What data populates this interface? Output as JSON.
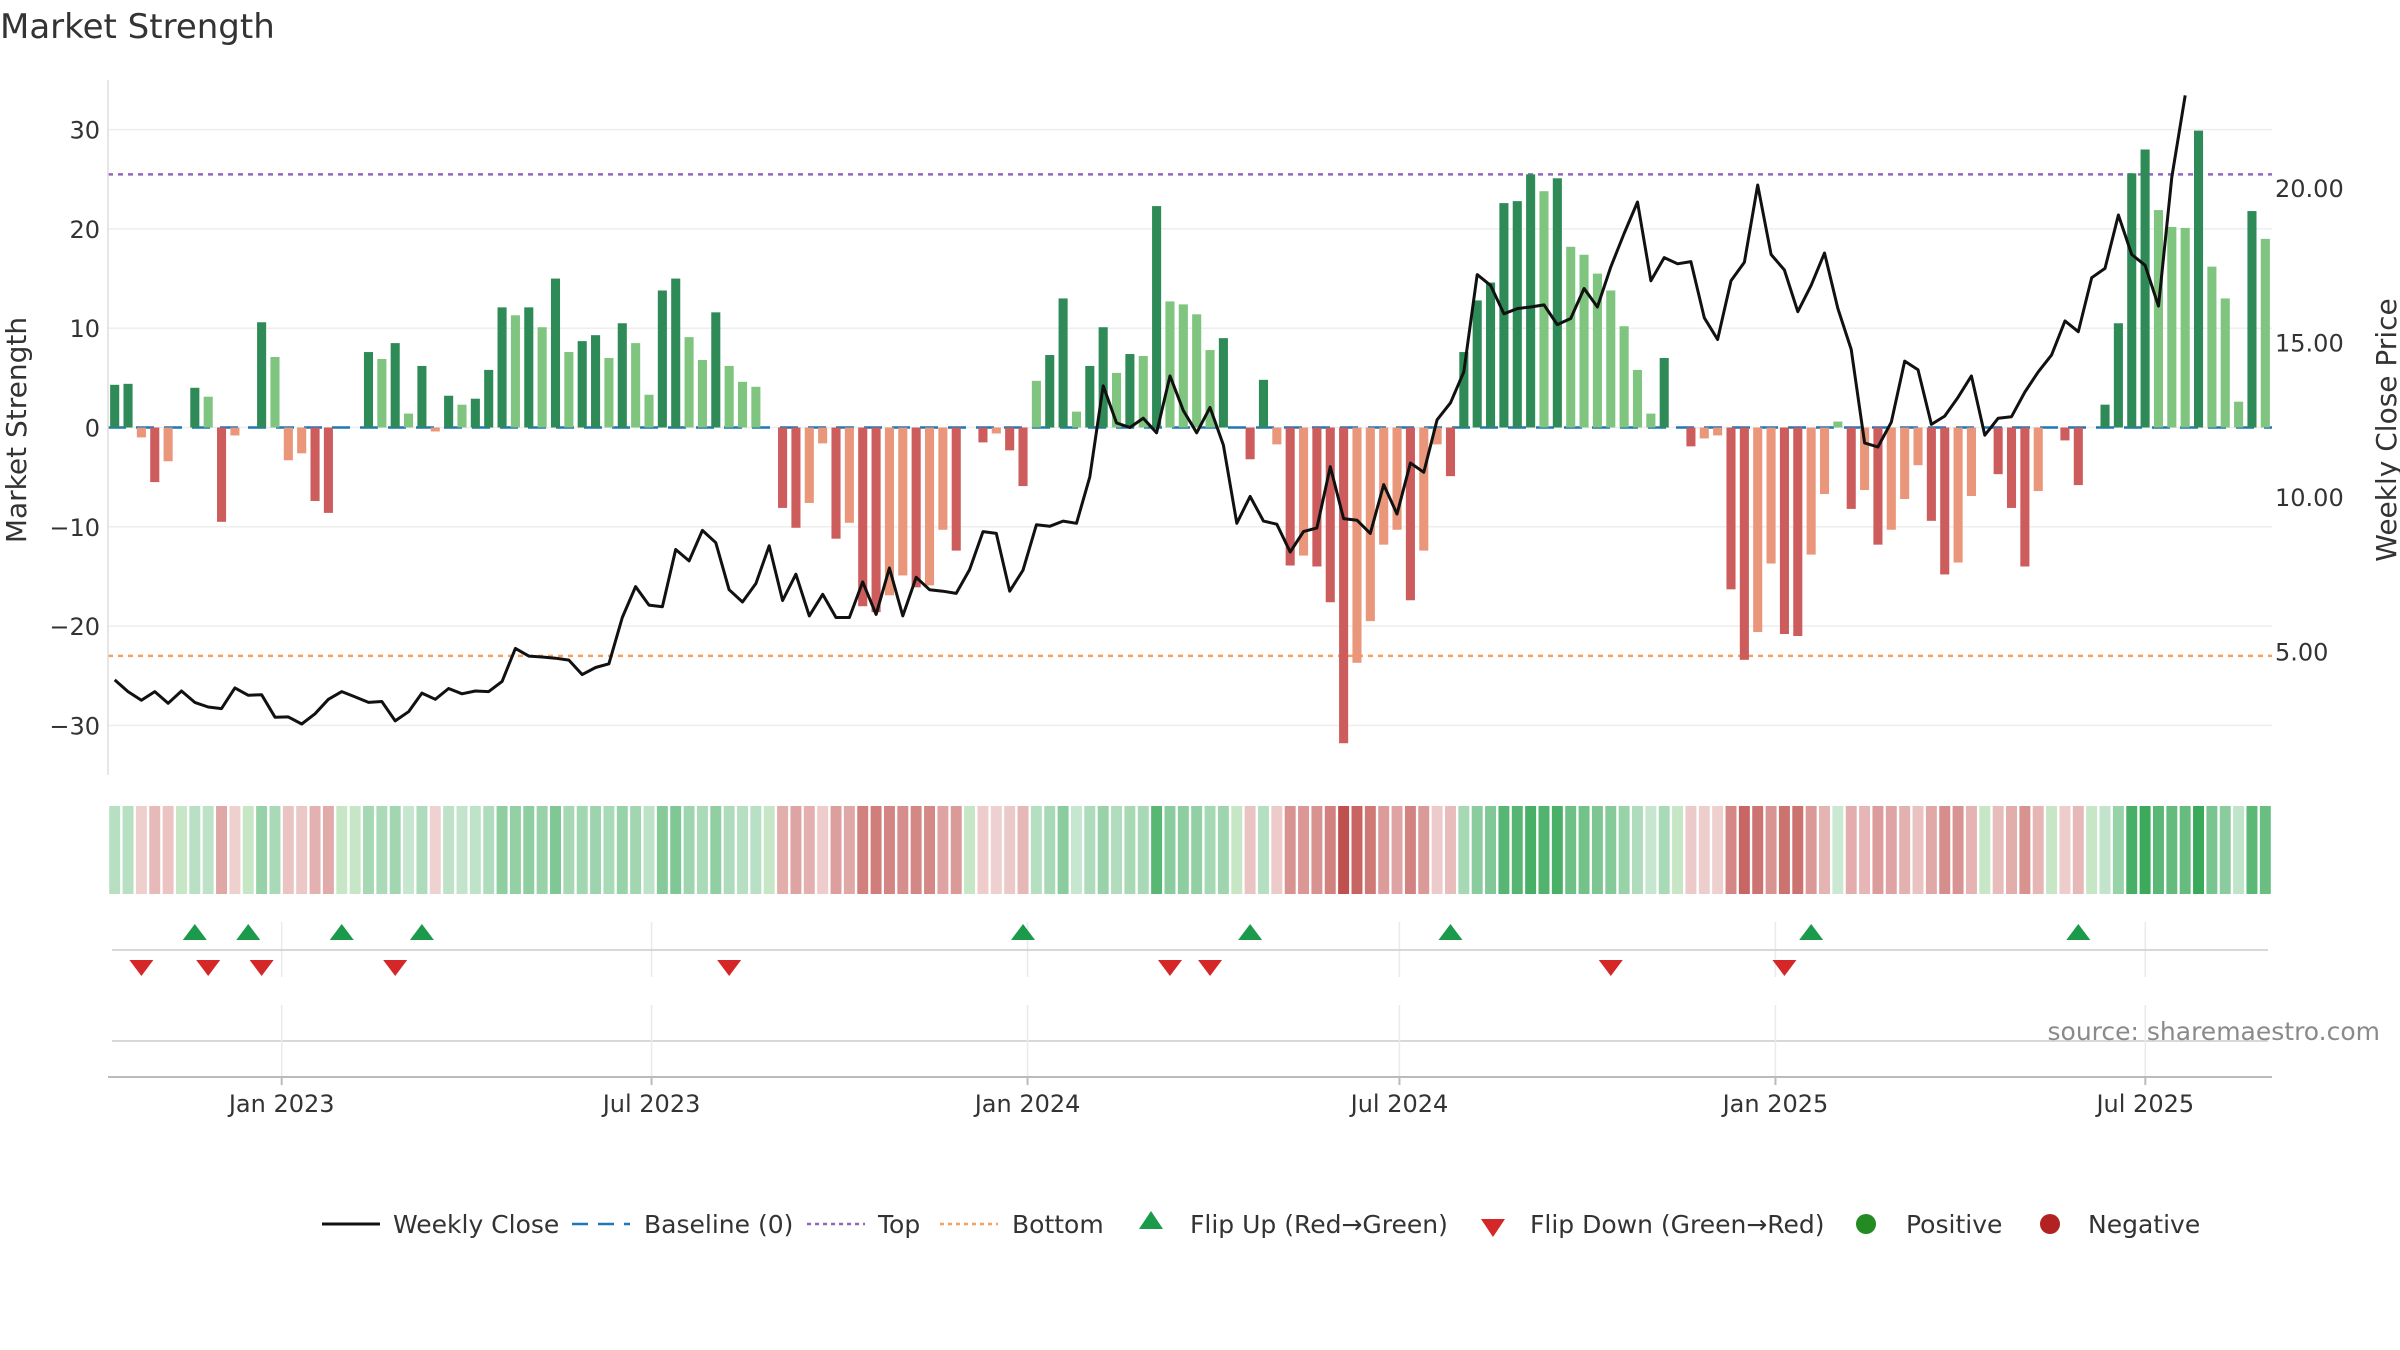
{
  "chart_data": {
    "type": "bar",
    "title": "Market Strength",
    "ylabel": "Market Strength",
    "y2label": "Weekly Close Price",
    "ylim": [
      -35,
      35
    ],
    "y2lim": [
      1.0,
      23.5
    ],
    "yticks": [
      -30,
      -20,
      -10,
      0,
      10,
      20,
      30
    ],
    "ytick_labels": [
      "−30",
      "−20",
      "−10",
      "0",
      "10",
      "20",
      "30"
    ],
    "y2ticks": [
      5,
      10,
      15,
      20
    ],
    "y2tick_labels": [
      "5.00",
      "10.00",
      "15.00",
      "20.00"
    ],
    "x_range": [
      "2022-10-08",
      "2025-09-01"
    ],
    "xticks": [
      {
        "date": "2023-01-01",
        "label": "Jan 2023"
      },
      {
        "date": "2023-07-01",
        "label": "Jul 2023"
      },
      {
        "date": "2024-01-01",
        "label": "Jan 2024"
      },
      {
        "date": "2024-07-01",
        "label": "Jul 2024"
      },
      {
        "date": "2025-01-01",
        "label": "Jan 2025"
      },
      {
        "date": "2025-07-01",
        "label": "Jul 2025"
      }
    ],
    "reference_lines": {
      "top": 25.5,
      "bottom": -23.0,
      "baseline": 0
    },
    "strength": [
      4.3,
      4.4,
      -1.0,
      -5.5,
      -3.4,
      0,
      4.0,
      3.1,
      -9.5,
      -0.8,
      0,
      10.6,
      7.1,
      -3.3,
      -2.6,
      -7.4,
      -8.6,
      0,
      0,
      7.6,
      6.9,
      8.5,
      1.4,
      6.2,
      -0.4,
      3.2,
      2.3,
      2.9,
      5.8,
      12.1,
      11.3,
      12.1,
      10.1,
      15.0,
      7.6,
      8.7,
      9.3,
      7.0,
      10.5,
      8.5,
      3.3,
      13.8,
      15.0,
      9.1,
      6.8,
      11.6,
      6.2,
      4.6,
      4.1,
      0,
      -8.1,
      -10.1,
      -7.6,
      -1.6,
      -11.2,
      -9.6,
      -18.0,
      -18.6,
      -16.9,
      -14.9,
      -16.1,
      -15.9,
      -10.3,
      -12.4,
      0,
      -1.5,
      -0.6,
      -2.3,
      -5.9,
      4.7,
      7.3,
      13.0,
      1.6,
      6.2,
      10.1,
      5.5,
      7.4,
      7.2,
      22.3,
      12.7,
      12.4,
      11.4,
      7.8,
      9.0,
      0,
      -3.2,
      4.8,
      -1.7,
      -13.9,
      -12.9,
      -14.0,
      -17.6,
      -31.8,
      -23.7,
      -19.5,
      -11.8,
      -10.3,
      -17.4,
      -12.4,
      -1.7,
      -4.9,
      7.6,
      12.8,
      14.6,
      22.6,
      22.8,
      25.5,
      23.8,
      25.1,
      18.2,
      17.4,
      15.5,
      13.8,
      10.2,
      5.8,
      1.4,
      7.0,
      0,
      -1.9,
      -1.1,
      -0.8,
      -16.3,
      -23.4,
      -20.6,
      -13.7,
      -20.8,
      -21.0,
      -12.8,
      -6.7,
      0.6,
      -8.2,
      -6.3,
      -11.8,
      -10.3,
      -7.2,
      -3.8,
      -9.4,
      -14.8,
      -13.6,
      -6.9,
      0,
      -4.7,
      -8.1,
      -14.0,
      -6.4,
      0,
      -1.3,
      -5.8,
      0,
      2.3,
      10.5,
      25.6,
      28.0,
      21.9,
      20.2,
      20.1,
      29.9,
      16.2,
      13.0,
      2.6,
      21.8,
      19.0
    ],
    "close": [
      4.08,
      3.7,
      3.42,
      3.7,
      3.32,
      3.72,
      3.35,
      3.2,
      3.15,
      3.82,
      3.58,
      3.6,
      2.87,
      2.88,
      2.65,
      2.98,
      3.45,
      3.7,
      3.53,
      3.35,
      3.38,
      2.75,
      3.05,
      3.65,
      3.45,
      3.8,
      3.63,
      3.72,
      3.7,
      4.03,
      5.1,
      4.85,
      4.82,
      4.78,
      4.72,
      4.25,
      4.48,
      4.6,
      6.1,
      7.1,
      6.5,
      6.45,
      8.3,
      7.93,
      8.92,
      8.52,
      7.0,
      6.6,
      7.2,
      8.42,
      6.65,
      7.5,
      6.15,
      6.85,
      6.1,
      6.1,
      7.25,
      6.2,
      7.7,
      6.15,
      7.4,
      7.0,
      6.95,
      6.88,
      7.65,
      8.88,
      8.82,
      6.95,
      7.63,
      9.1,
      9.05,
      9.22,
      9.15,
      10.65,
      13.6,
      12.4,
      12.25,
      12.55,
      12.08,
      13.92,
      12.8,
      12.08,
      12.9,
      11.68,
      9.15,
      10.02,
      9.22,
      9.12,
      8.22,
      8.88,
      9.0,
      10.98,
      9.3,
      9.25,
      8.82,
      10.4,
      9.45,
      11.1,
      10.8,
      12.5,
      13.05,
      14.05,
      17.2,
      16.85,
      15.93,
      16.1,
      16.15,
      16.22,
      15.58,
      15.78,
      16.75,
      16.15,
      17.45,
      18.53,
      19.55,
      17.0,
      17.75,
      17.55,
      17.62,
      15.8,
      15.1,
      17.0,
      17.6,
      20.1,
      17.85,
      17.35,
      16.0,
      16.85,
      17.9,
      16.1,
      14.78,
      11.75,
      11.62,
      12.42,
      14.4,
      14.12,
      12.35,
      12.62,
      13.23,
      13.92,
      12.0,
      12.55,
      12.6,
      13.4,
      14.05,
      14.6,
      15.7,
      15.35,
      17.1,
      17.4,
      19.13,
      17.85,
      17.5,
      16.18,
      20.35,
      23.0
    ],
    "flip_up_weeks": [
      6,
      10,
      17,
      23,
      68,
      85,
      100,
      127,
      147
    ],
    "flip_down_weeks": [
      2,
      7,
      11,
      21,
      46,
      79,
      82,
      112,
      125
    ],
    "legend": [
      {
        "key": "close",
        "label": "Weekly Close"
      },
      {
        "key": "baseline",
        "label": "Baseline (0)"
      },
      {
        "key": "top",
        "label": "Top"
      },
      {
        "key": "bottom",
        "label": "Bottom"
      },
      {
        "key": "flip_up",
        "label": "Flip Up (Red→Green)"
      },
      {
        "key": "flip_down",
        "label": "Flip Down (Green→Red)"
      },
      {
        "key": "positive",
        "label": "Positive"
      },
      {
        "key": "negative",
        "label": "Negative"
      }
    ],
    "source_label": "source: sharemaestro.com"
  },
  "colors": {
    "pos_strong": "#2e8b57",
    "pos_light": "#7fc47f",
    "neg_strong": "#cd5c5c",
    "neg_light": "#e9967a",
    "close_line": "#111111",
    "baseline": "#1f77b4",
    "top": "#9467bd",
    "bottom": "#f4a261",
    "flip_up": "#1a9a4a",
    "flip_down": "#d62728",
    "legend_positive": "#228b22",
    "legend_negative": "#b22222",
    "grid": "#eeeeee",
    "source": "#8a8a8a"
  }
}
